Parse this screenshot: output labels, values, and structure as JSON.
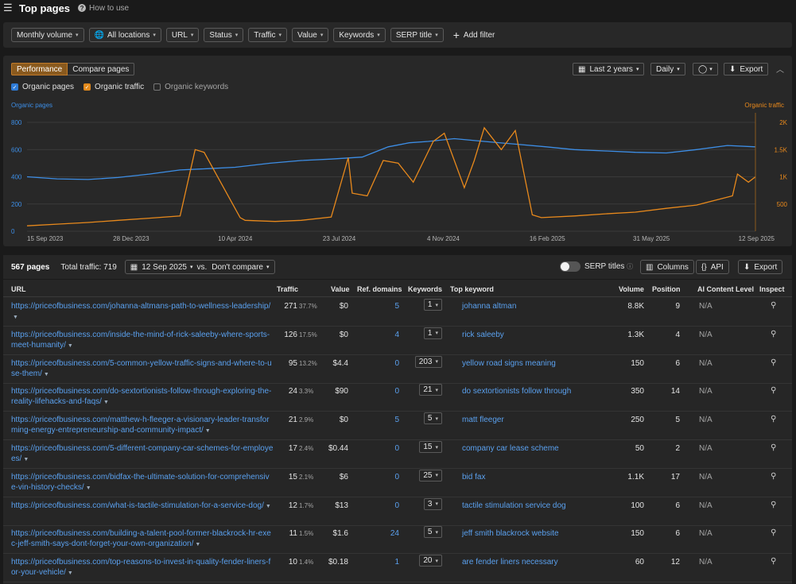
{
  "header": {
    "title": "Top pages",
    "how_to_use": "How to use"
  },
  "filters": {
    "items": [
      "Monthly volume",
      "All locations",
      "URL",
      "Status",
      "Traffic",
      "Value",
      "Keywords",
      "SERP title"
    ],
    "add_filter": "Add filter"
  },
  "performance": {
    "tabs": [
      "Performance",
      "Compare pages"
    ],
    "range": "Last 2 years",
    "interval": "Daily",
    "export": "Export",
    "legend": [
      "Organic pages",
      "Organic traffic",
      "Organic keywords"
    ],
    "colors": {
      "pages": "#3d8ee6",
      "traffic": "#e8891c",
      "accent": "#c07a2a"
    }
  },
  "chart_data": {
    "type": "line",
    "left_axis_label": "Organic pages",
    "right_axis_label": "Organic traffic",
    "left_ticks": [
      "800",
      "600",
      "400",
      "200",
      "0"
    ],
    "right_ticks": [
      "2K",
      "1.5K",
      "1K",
      "500"
    ],
    "x_ticks": [
      "15 Sep 2023",
      "28 Dec 2023",
      "10 Apr 2024",
      "23 Jul 2024",
      "4 Nov 2024",
      "16 Feb 2025",
      "31 May 2025",
      "12 Sep 2025"
    ],
    "left_ylim": [
      0,
      800
    ],
    "right_ylim": [
      0,
      2000
    ],
    "series": [
      {
        "name": "Organic pages",
        "axis": "left",
        "x": [
          "2023-09-15",
          "2023-10-15",
          "2023-11-15",
          "2023-12-15",
          "2024-01-15",
          "2024-02-15",
          "2024-03-15",
          "2024-04-10",
          "2024-05-15",
          "2024-06-15",
          "2024-07-15",
          "2024-08-15",
          "2024-09-10",
          "2024-10-01",
          "2024-10-20",
          "2024-11-15",
          "2024-12-15",
          "2025-01-15",
          "2025-02-15",
          "2025-03-15",
          "2025-04-15",
          "2025-05-15",
          "2025-06-15",
          "2025-07-15",
          "2025-08-15",
          "2025-09-12"
        ],
        "y": [
          400,
          385,
          380,
          395,
          420,
          450,
          460,
          470,
          500,
          520,
          530,
          545,
          620,
          650,
          660,
          680,
          660,
          640,
          620,
          600,
          590,
          580,
          575,
          600,
          630,
          620
        ]
      },
      {
        "name": "Organic traffic",
        "axis": "right",
        "x": [
          "2023-09-15",
          "2023-10-15",
          "2023-11-15",
          "2023-12-15",
          "2024-01-15",
          "2024-02-15",
          "2024-03-01",
          "2024-03-10",
          "2024-04-15",
          "2024-04-20",
          "2024-05-20",
          "2024-06-15",
          "2024-07-15",
          "2024-08-01",
          "2024-08-05",
          "2024-08-20",
          "2024-09-05",
          "2024-09-20",
          "2024-10-05",
          "2024-10-25",
          "2024-11-05",
          "2024-11-25",
          "2024-12-05",
          "2024-12-15",
          "2025-01-01",
          "2025-01-15",
          "2025-02-01",
          "2025-02-10",
          "2025-03-15",
          "2025-04-15",
          "2025-05-15",
          "2025-06-15",
          "2025-07-15",
          "2025-08-01",
          "2025-08-20",
          "2025-08-25",
          "2025-09-05",
          "2025-09-12"
        ],
        "y": [
          100,
          130,
          160,
          200,
          240,
          280,
          1500,
          1450,
          250,
          200,
          180,
          200,
          260,
          1350,
          700,
          650,
          1300,
          1250,
          900,
          1650,
          1800,
          800,
          1300,
          1900,
          1500,
          1850,
          300,
          250,
          280,
          320,
          350,
          420,
          480,
          560,
          650,
          1050,
          900,
          1000
        ]
      }
    ],
    "legend": "top-left",
    "grid": true
  },
  "summary": {
    "pages": "567 pages",
    "total_traffic": "Total traffic: 719",
    "date": "12 Sep 2025",
    "vs": "vs.",
    "compare": "Don't compare",
    "serp_titles": "SERP titles",
    "columns": "Columns",
    "api": "API",
    "export": "Export"
  },
  "table": {
    "headers": [
      "URL",
      "Traffic",
      "Value",
      "Ref. domains",
      "Keywords",
      "Top keyword",
      "Volume",
      "Position",
      "AI Content Level",
      "Inspect"
    ],
    "rows": [
      {
        "url": "https://priceofbusiness.com/johanna-altmans-path-to-wellness-leadership/",
        "traffic": "271",
        "pct": "37.7%",
        "value": "$0",
        "ref": "5",
        "kw": "1",
        "topkw": "johanna altman",
        "vol": "8.8K",
        "pos": "9",
        "ai": "N/A"
      },
      {
        "url": "https://priceofbusiness.com/inside-the-mind-of-rick-saleeby-where-sports-meet-humanity/",
        "traffic": "126",
        "pct": "17.5%",
        "value": "$0",
        "ref": "4",
        "kw": "1",
        "topkw": "rick saleeby",
        "vol": "1.3K",
        "pos": "4",
        "ai": "N/A"
      },
      {
        "url": "https://priceofbusiness.com/5-common-yellow-traffic-signs-and-where-to-use-them/",
        "traffic": "95",
        "pct": "13.2%",
        "value": "$4.4",
        "ref": "0",
        "kw": "203",
        "topkw": "yellow road signs meaning",
        "vol": "150",
        "pos": "6",
        "ai": "N/A"
      },
      {
        "url": "https://priceofbusiness.com/do-sextortionists-follow-through-exploring-the-reality-lifehacks-and-faqs/",
        "traffic": "24",
        "pct": "3.3%",
        "value": "$90",
        "ref": "0",
        "kw": "21",
        "topkw": "do sextortionists follow through",
        "vol": "350",
        "pos": "14",
        "ai": "N/A"
      },
      {
        "url": "https://priceofbusiness.com/matthew-h-fleeger-a-visionary-leader-transforming-energy-entrepreneurship-and-community-impact/",
        "traffic": "21",
        "pct": "2.9%",
        "value": "$0",
        "ref": "5",
        "kw": "5",
        "topkw": "matt fleeger",
        "vol": "250",
        "pos": "5",
        "ai": "N/A"
      },
      {
        "url": "https://priceofbusiness.com/5-different-company-car-schemes-for-employees/",
        "traffic": "17",
        "pct": "2.4%",
        "value": "$0.44",
        "ref": "0",
        "kw": "15",
        "topkw": "company car lease scheme",
        "vol": "50",
        "pos": "2",
        "ai": "N/A"
      },
      {
        "url": "https://priceofbusiness.com/bidfax-the-ultimate-solution-for-comprehensive-vin-history-checks/",
        "traffic": "15",
        "pct": "2.1%",
        "value": "$6",
        "ref": "0",
        "kw": "25",
        "topkw": "bid fax",
        "vol": "1.1K",
        "pos": "17",
        "ai": "N/A"
      },
      {
        "url": "https://priceofbusiness.com/what-is-tactile-stimulation-for-a-service-dog/",
        "traffic": "12",
        "pct": "1.7%",
        "value": "$13",
        "ref": "0",
        "kw": "3",
        "topkw": "tactile stimulation service dog",
        "vol": "100",
        "pos": "6",
        "ai": "N/A"
      },
      {
        "url": "https://priceofbusiness.com/building-a-talent-pool-former-blackrock-hr-exec-jeff-smith-says-dont-forget-your-own-organization/",
        "traffic": "11",
        "pct": "1.5%",
        "value": "$1.6",
        "ref": "24",
        "kw": "5",
        "topkw": "jeff smith blackrock website",
        "vol": "150",
        "pos": "6",
        "ai": "N/A"
      },
      {
        "url": "https://priceofbusiness.com/top-reasons-to-invest-in-quality-fender-liners-for-your-vehicle/",
        "traffic": "10",
        "pct": "1.4%",
        "value": "$0.18",
        "ref": "1",
        "kw": "20",
        "topkw": "are fender liners necessary",
        "vol": "60",
        "pos": "12",
        "ai": "N/A"
      }
    ]
  }
}
